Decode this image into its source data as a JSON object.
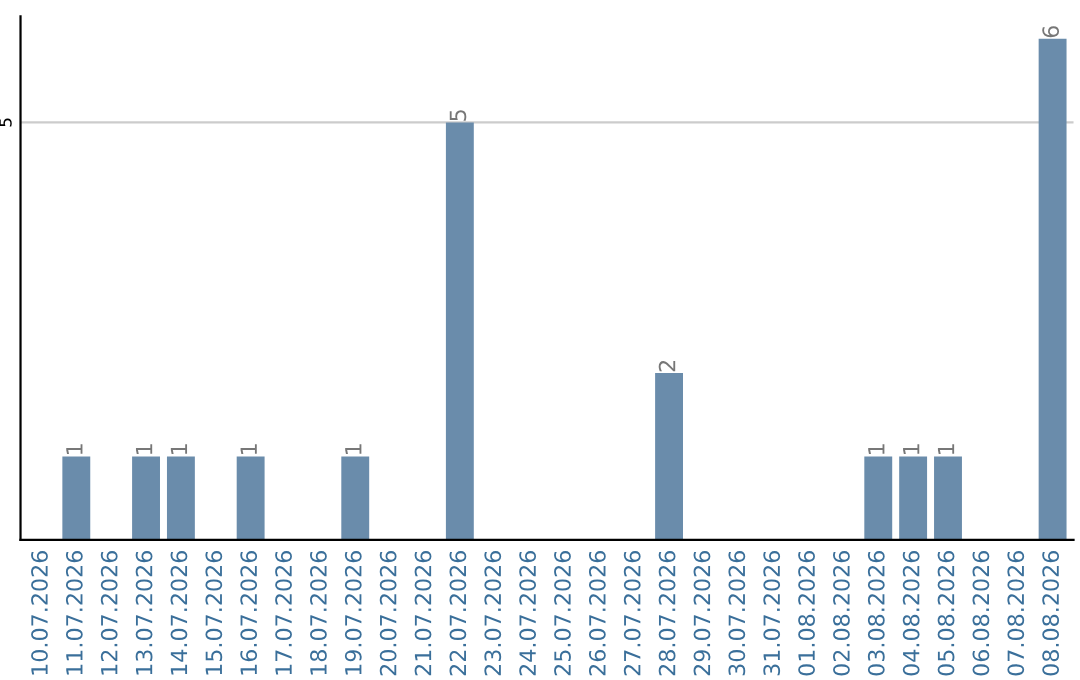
{
  "chart_data": {
    "type": "bar",
    "categories": [
      "10.07.2026",
      "11.07.2026",
      "12.07.2026",
      "13.07.2026",
      "14.07.2026",
      "15.07.2026",
      "16.07.2026",
      "17.07.2026",
      "18.07.2026",
      "19.07.2026",
      "20.07.2026",
      "21.07.2026",
      "22.07.2026",
      "23.07.2026",
      "24.07.2026",
      "25.07.2026",
      "26.07.2026",
      "27.07.2026",
      "28.07.2026",
      "29.07.2026",
      "30.07.2026",
      "31.07.2026",
      "01.08.2026",
      "02.08.2026",
      "03.08.2026",
      "04.08.2026",
      "05.08.2026",
      "06.08.2026",
      "07.08.2026",
      "08.08.2026"
    ],
    "values": [
      0,
      1,
      0,
      1,
      1,
      0,
      1,
      0,
      0,
      1,
      0,
      0,
      5,
      0,
      0,
      0,
      0,
      0,
      2,
      0,
      0,
      0,
      0,
      0,
      1,
      1,
      1,
      0,
      0,
      6
    ],
    "color": "#6a8cab",
    "value_labels": [
      null,
      "1",
      null,
      "1",
      "1",
      null,
      "1",
      null,
      null,
      "1",
      null,
      null,
      "5",
      null,
      null,
      null,
      null,
      null,
      "2",
      null,
      null,
      null,
      null,
      null,
      "1",
      "1",
      "1",
      null,
      null,
      "6"
    ],
    "ylim": [
      0,
      6.27
    ],
    "yticks": [
      5
    ],
    "grid": "y"
  }
}
